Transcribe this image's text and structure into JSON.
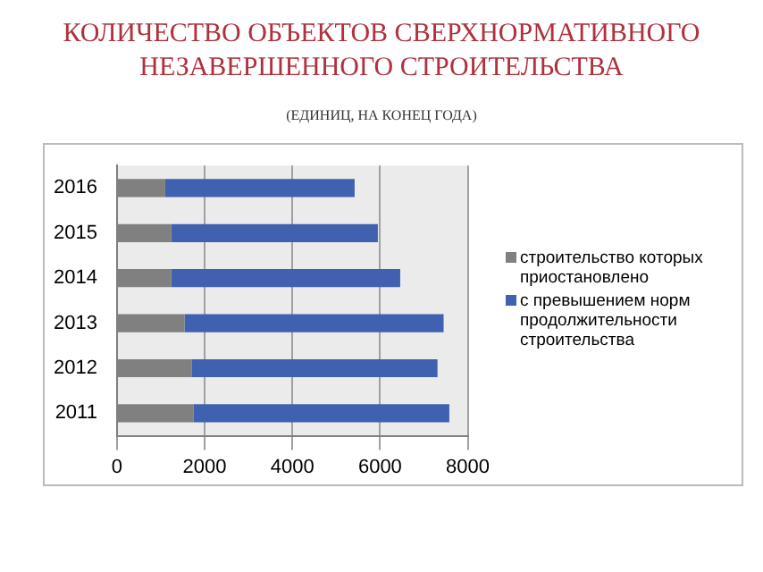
{
  "chart_data": {
    "type": "bar",
    "title": "КОЛИЧЕСТВО ОБЪЕКТОВ СВЕРХНОРМАТИВНОГО НЕЗАВЕРШЕННОГО СТРОИТЕЛЬСТВА",
    "subtitle": "(ЕДИНИЦ, НА КОНЕЦ ГОДА)",
    "orientation": "horizontal",
    "stacked": true,
    "categories": [
      "2016",
      "2015",
      "2014",
      "2013",
      "2012",
      "2011"
    ],
    "series": [
      {
        "name": "строительство которых приостановлено",
        "color": "#808080",
        "values": [
          1100,
          1240,
          1240,
          1540,
          1700,
          1750
        ]
      },
      {
        "name": "с превышением норм продолжительности строительства",
        "color": "#4060b0",
        "values": [
          4320,
          4710,
          5220,
          5910,
          5610,
          5830
        ]
      }
    ],
    "xlim": [
      0,
      8000
    ],
    "xticks": [
      0,
      2000,
      4000,
      6000,
      8000
    ],
    "grid": "x",
    "legend": "right"
  }
}
